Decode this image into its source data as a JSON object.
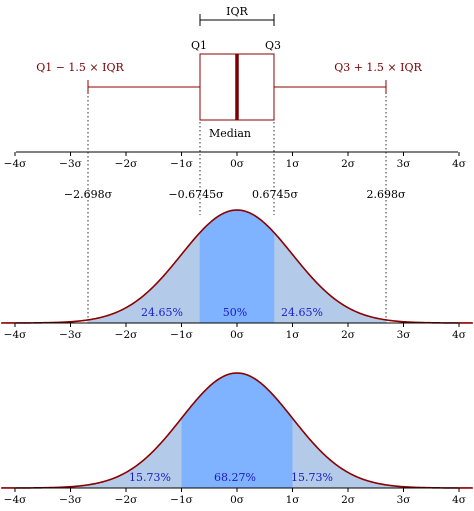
{
  "colors": {
    "curve": "#8b0000",
    "box": "#8b0000",
    "median": "#7a0000",
    "fill_center": "#80b3ff",
    "fill_side": "#b3cbe8",
    "axis": "#000000",
    "percent_text": "#1a1acc"
  },
  "boxplot": {
    "iqr_label": "IQR",
    "q1_label": "Q1",
    "q3_label": "Q3",
    "median_label": "Median",
    "left_whisker_label": "Q1 − 1.5 × IQR",
    "right_whisker_label": "Q3 + 1.5 × IQR",
    "q1": -0.6745,
    "q3": 0.6745,
    "median": 0,
    "whisker_low": -2.698,
    "whisker_high": 2.698
  },
  "axis_ticks": [
    "−4σ",
    "−3σ",
    "−2σ",
    "−1σ",
    "0σ",
    "1σ",
    "2σ",
    "3σ",
    "4σ"
  ],
  "axis_range": [
    -4,
    4
  ],
  "marker_labels": [
    {
      "value": -2.698,
      "text": "−2.698σ"
    },
    {
      "value": -0.6745,
      "text": "−0.6745σ"
    },
    {
      "value": 0.6745,
      "text": "0.6745σ"
    },
    {
      "value": 2.698,
      "text": "2.698σ"
    }
  ],
  "panel_iqr": {
    "bounds": [
      -2.698,
      -0.6745,
      0.6745,
      2.698
    ],
    "left_pct": "24.65%",
    "center_pct": "50%",
    "right_pct": "24.65%"
  },
  "panel_sigma": {
    "bounds": [
      -1,
      1
    ],
    "left_pct": "15.73%",
    "center_pct": "68.27%",
    "right_pct": "15.73%"
  }
}
